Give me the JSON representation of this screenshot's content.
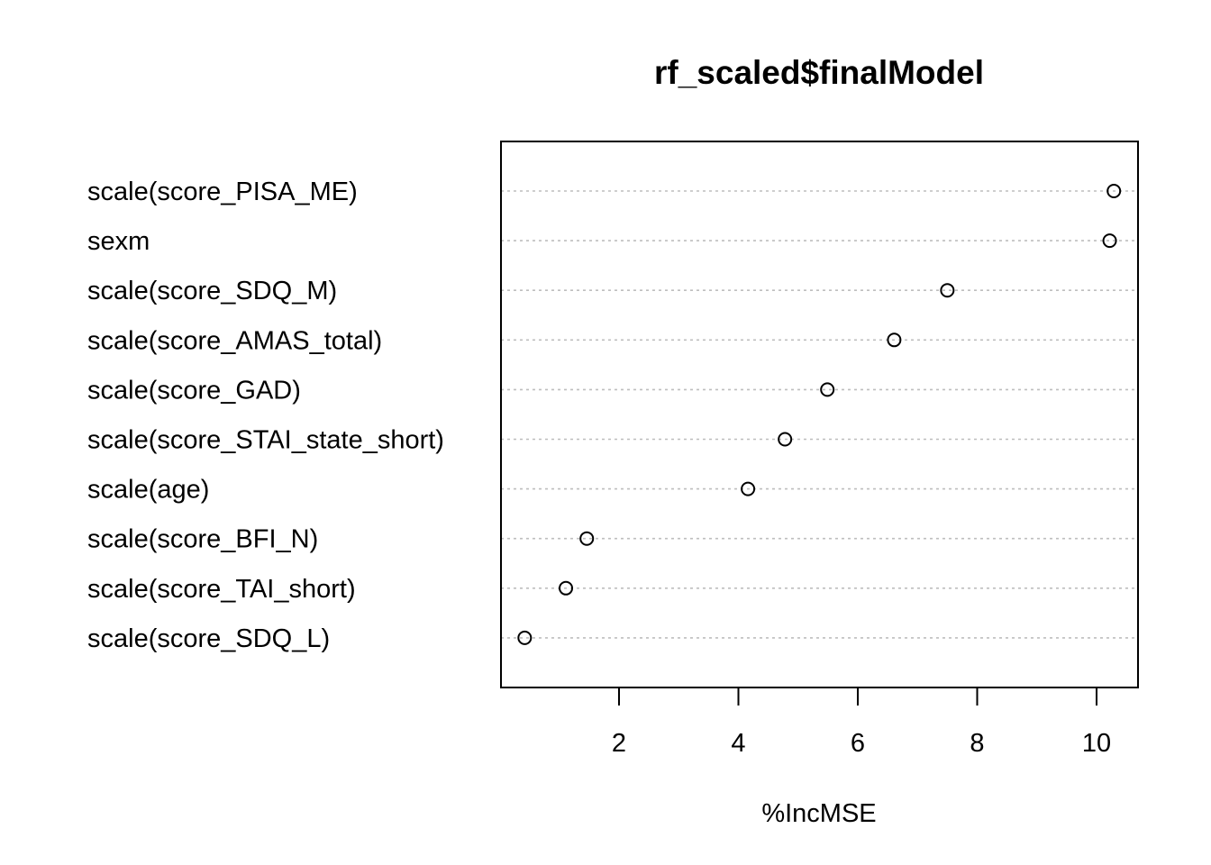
{
  "chart_data": {
    "type": "scatter",
    "style": "dotchart",
    "title": "rf_scaled$finalModel",
    "xlabel": "%IncMSE",
    "ylabel": "",
    "categories": [
      "scale(score_PISA_ME)",
      "sexm",
      "scale(score_SDQ_M)",
      "scale(score_AMAS_total)",
      "scale(score_GAD)",
      "scale(score_STAI_state_short)",
      "scale(age)",
      "scale(score_BFI_N)",
      "scale(score_TAI_short)",
      "scale(score_SDQ_L)"
    ],
    "values": [
      10.29,
      10.22,
      7.5,
      6.61,
      5.49,
      4.78,
      4.16,
      1.46,
      1.11,
      0.42
    ],
    "xticks": [
      2,
      4,
      6,
      8,
      10
    ],
    "xlim": [
      0.0,
      10.7
    ],
    "grid": "dotted horizontal lines per row",
    "marker": "open circle",
    "colors": {
      "frame": "#000000",
      "grid": "#bebebe",
      "point": "#000000",
      "background": "#ffffff"
    }
  }
}
